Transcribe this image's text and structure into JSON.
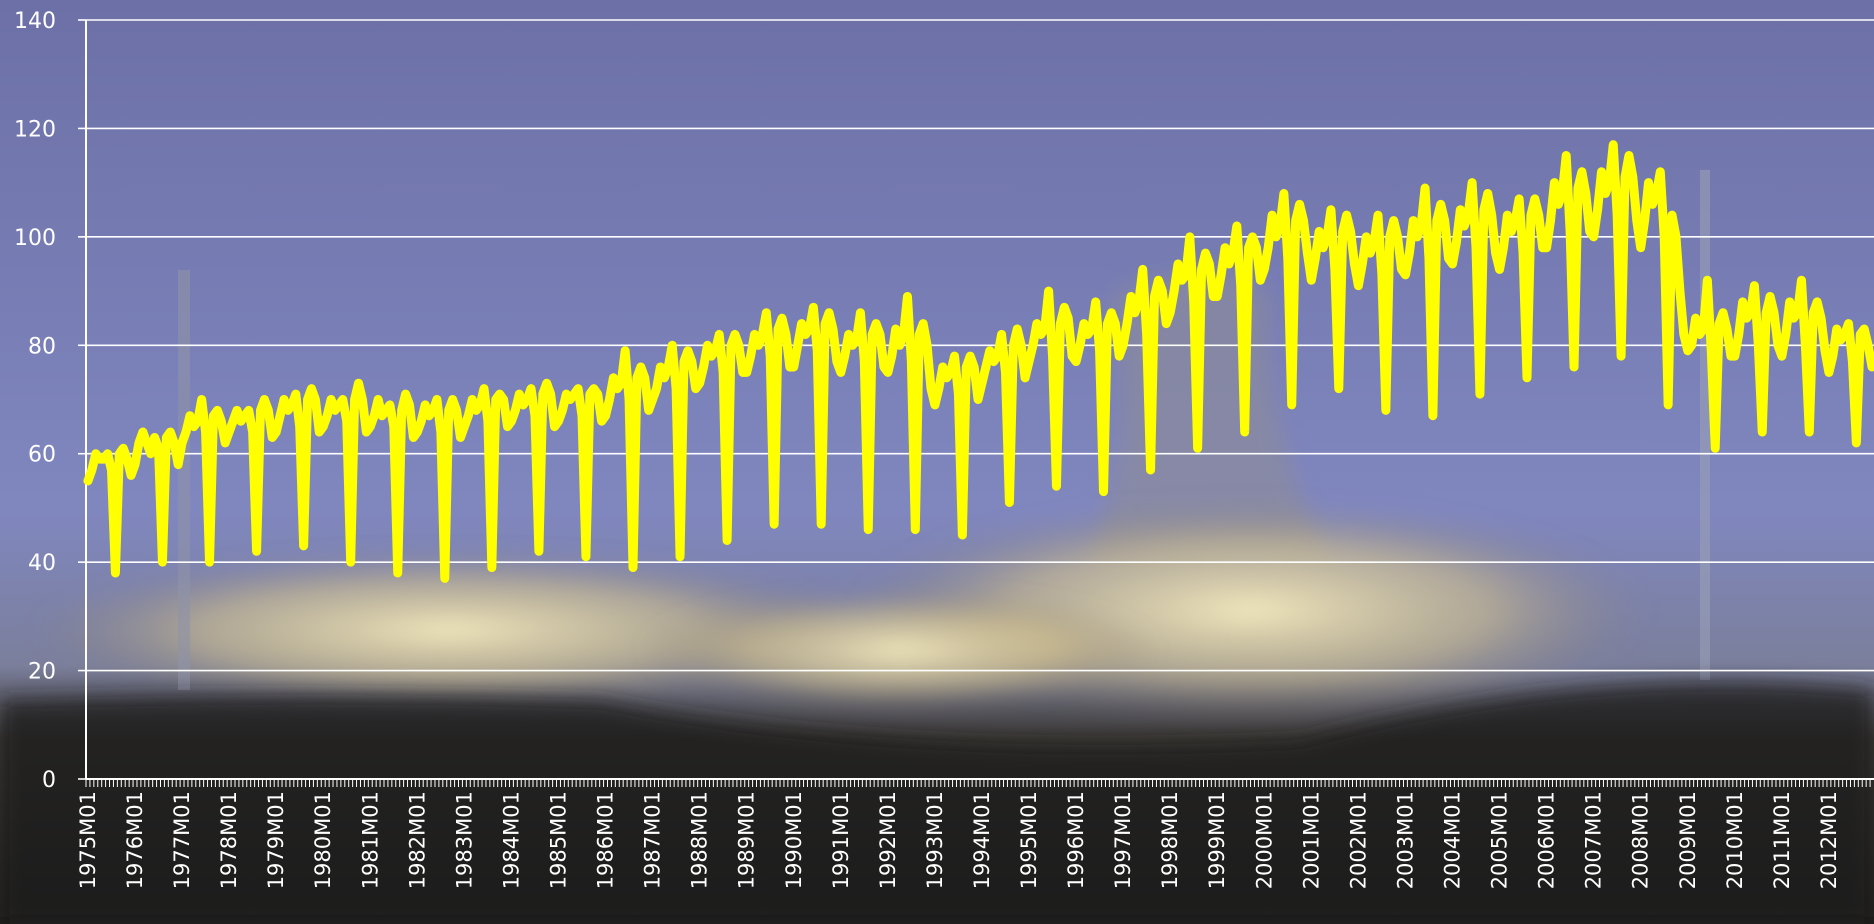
{
  "chart_data": {
    "type": "line",
    "color": "#ffff00",
    "grid": true,
    "ylim": [
      0,
      140
    ],
    "yticks": [
      0,
      20,
      40,
      60,
      80,
      100,
      120,
      140
    ],
    "categories": [
      "1975M01",
      null,
      null,
      null,
      null,
      null,
      null,
      null,
      null,
      null,
      null,
      null,
      "1976M01",
      null,
      null,
      null,
      null,
      null,
      null,
      null,
      null,
      null,
      null,
      null,
      "1977M01",
      null,
      null,
      null,
      null,
      null,
      null,
      null,
      null,
      null,
      null,
      null,
      "1978M01",
      null,
      null,
      null,
      null,
      null,
      null,
      null,
      null,
      null,
      null,
      null,
      "1979M01",
      null,
      null,
      null,
      null,
      null,
      null,
      null,
      null,
      null,
      null,
      null,
      "1980M01",
      null,
      null,
      null,
      null,
      null,
      null,
      null,
      null,
      null,
      null,
      null,
      "1981M01",
      null,
      null,
      null,
      null,
      null,
      null,
      null,
      null,
      null,
      null,
      null,
      "1982M01",
      null,
      null,
      null,
      null,
      null,
      null,
      null,
      null,
      null,
      null,
      null,
      "1983M01",
      null,
      null,
      null,
      null,
      null,
      null,
      null,
      null,
      null,
      null,
      null,
      "1984M01",
      null,
      null,
      null,
      null,
      null,
      null,
      null,
      null,
      null,
      null,
      null,
      "1985M01",
      null,
      null,
      null,
      null,
      null,
      null,
      null,
      null,
      null,
      null,
      null,
      "1986M01",
      null,
      null,
      null,
      null,
      null,
      null,
      null,
      null,
      null,
      null,
      null,
      "1987M01",
      null,
      null,
      null,
      null,
      null,
      null,
      null,
      null,
      null,
      null,
      null,
      "1988M01",
      null,
      null,
      null,
      null,
      null,
      null,
      null,
      null,
      null,
      null,
      null,
      "1989M01",
      null,
      null,
      null,
      null,
      null,
      null,
      null,
      null,
      null,
      null,
      null,
      "1990M01",
      null,
      null,
      null,
      null,
      null,
      null,
      null,
      null,
      null,
      null,
      null,
      "1991M01",
      null,
      null,
      null,
      null,
      null,
      null,
      null,
      null,
      null,
      null,
      null,
      "1992M01",
      null,
      null,
      null,
      null,
      null,
      null,
      null,
      null,
      null,
      null,
      null,
      "1993M01",
      null,
      null,
      null,
      null,
      null,
      null,
      null,
      null,
      null,
      null,
      null,
      "1994M01",
      null,
      null,
      null,
      null,
      null,
      null,
      null,
      null,
      null,
      null,
      null,
      "1995M01",
      null,
      null,
      null,
      null,
      null,
      null,
      null,
      null,
      null,
      null,
      null,
      "1996M01",
      null,
      null,
      null,
      null,
      null,
      null,
      null,
      null,
      null,
      null,
      null,
      "1997M01",
      null,
      null,
      null,
      null,
      null,
      null,
      null,
      null,
      null,
      null,
      null,
      "1998M01",
      null,
      null,
      null,
      null,
      null,
      null,
      null,
      null,
      null,
      null,
      null,
      "1999M01",
      null,
      null,
      null,
      null,
      null,
      null,
      null,
      null,
      null,
      null,
      null,
      "2000M01",
      null,
      null,
      null,
      null,
      null,
      null,
      null,
      null,
      null,
      null,
      null,
      "2001M01",
      null,
      null,
      null,
      null,
      null,
      null,
      null,
      null,
      null,
      null,
      null,
      "2002M01",
      null,
      null,
      null,
      null,
      null,
      null,
      null,
      null,
      null,
      null,
      null,
      "2003M01",
      null,
      null,
      null,
      null,
      null,
      null,
      null,
      null,
      null,
      null,
      null,
      "2004M01",
      null,
      null,
      null,
      null,
      null,
      null,
      null,
      null,
      null,
      null,
      null,
      "2005M01",
      null,
      null,
      null,
      null,
      null,
      null,
      null,
      null,
      null,
      null,
      null,
      "2006M01",
      null,
      null,
      null,
      null,
      null,
      null,
      null,
      null,
      null,
      null,
      null,
      "2007M01",
      null,
      null,
      null,
      null,
      null,
      null,
      null,
      null,
      null,
      null,
      null,
      "2008M01",
      null,
      null,
      null,
      null,
      null,
      null,
      null,
      null,
      null,
      null,
      null,
      "2009M01",
      null,
      null,
      null,
      null,
      null,
      null,
      null,
      null,
      null,
      null,
      null,
      "2010M01",
      null,
      null,
      null,
      null,
      null,
      null,
      null,
      null,
      null,
      null,
      null,
      "2011M01",
      null,
      null,
      null,
      null,
      null,
      null,
      null,
      null,
      null,
      null,
      null,
      "2012M01",
      null,
      null,
      null,
      null,
      null,
      null,
      null,
      null,
      null,
      null,
      null
    ],
    "values": [
      55,
      57,
      60,
      59,
      59,
      60,
      57,
      38,
      60,
      61,
      59,
      56,
      58,
      62,
      64,
      62,
      60,
      63,
      61,
      40,
      63,
      64,
      62,
      58,
      62,
      64,
      67,
      65,
      66,
      70,
      64,
      40,
      67,
      68,
      66,
      62,
      64,
      66,
      68,
      66,
      67,
      68,
      64,
      42,
      68,
      70,
      68,
      63,
      64,
      67,
      70,
      68,
      69,
      71,
      65,
      43,
      70,
      72,
      70,
      64,
      65,
      67,
      70,
      68,
      69,
      70,
      66,
      40,
      70,
      73,
      70,
      64,
      65,
      67,
      70,
      67,
      68,
      69,
      65,
      38,
      68,
      71,
      69,
      63,
      64,
      66,
      69,
      67,
      68,
      70,
      64,
      37,
      68,
      70,
      68,
      63,
      65,
      67,
      70,
      68,
      69,
      72,
      66,
      39,
      70,
      71,
      70,
      65,
      66,
      68,
      71,
      69,
      70,
      72,
      67,
      42,
      71,
      73,
      71,
      65,
      66,
      68,
      71,
      70,
      71,
      72,
      67,
      41,
      71,
      72,
      71,
      66,
      67,
      70,
      74,
      72,
      73,
      79,
      70,
      39,
      74,
      76,
      74,
      68,
      70,
      72,
      76,
      74,
      76,
      80,
      72,
      41,
      77,
      79,
      77,
      72,
      73,
      76,
      80,
      78,
      79,
      82,
      75,
      44,
      80,
      82,
      80,
      75,
      75,
      78,
      82,
      80,
      82,
      86,
      78,
      47,
      83,
      85,
      82,
      76,
      76,
      80,
      84,
      82,
      83,
      87,
      79,
      47,
      84,
      86,
      83,
      77,
      75,
      78,
      82,
      80,
      81,
      86,
      77,
      46,
      82,
      84,
      82,
      76,
      75,
      78,
      83,
      80,
      82,
      89,
      77,
      46,
      82,
      84,
      80,
      72,
      69,
      72,
      76,
      74,
      75,
      78,
      71,
      45,
      76,
      78,
      76,
      70,
      73,
      76,
      79,
      77,
      78,
      82,
      75,
      51,
      80,
      83,
      80,
      74,
      77,
      80,
      84,
      82,
      83,
      90,
      78,
      54,
      84,
      87,
      85,
      78,
      77,
      80,
      84,
      82,
      83,
      88,
      79,
      53,
      84,
      86,
      84,
      78,
      80,
      84,
      89,
      86,
      88,
      94,
      82,
      57,
      89,
      92,
      90,
      84,
      86,
      90,
      95,
      92,
      93,
      100,
      88,
      61,
      94,
      97,
      95,
      89,
      89,
      93,
      98,
      95,
      97,
      102,
      91,
      64,
      98,
      100,
      98,
      92,
      94,
      98,
      104,
      100,
      102,
      108,
      96,
      69,
      103,
      106,
      103,
      97,
      92,
      96,
      101,
      98,
      100,
      105,
      94,
      72,
      101,
      104,
      101,
      95,
      91,
      95,
      100,
      97,
      99,
      104,
      93,
      68,
      100,
      103,
      100,
      94,
      93,
      97,
      103,
      100,
      102,
      109,
      96,
      67,
      103,
      106,
      103,
      96,
      95,
      99,
      105,
      102,
      104,
      110,
      98,
      71,
      105,
      108,
      104,
      97,
      94,
      98,
      104,
      101,
      103,
      107,
      97,
      74,
      104,
      107,
      104,
      98,
      98,
      103,
      110,
      106,
      108,
      115,
      101,
      76,
      109,
      112,
      108,
      101,
      100,
      105,
      112,
      108,
      110,
      117,
      104,
      78,
      111,
      115,
      111,
      103,
      98,
      103,
      110,
      106,
      108,
      112,
      100,
      69,
      104,
      100,
      90,
      82,
      79,
      80,
      85,
      82,
      83,
      92,
      79,
      61,
      84,
      86,
      83,
      78,
      78,
      82,
      88,
      85,
      86,
      91,
      80,
      64,
      86,
      89,
      86,
      80,
      78,
      82,
      88,
      85,
      86,
      92,
      80,
      64,
      86,
      88,
      85,
      79,
      75,
      78,
      83,
      81,
      82,
      84,
      77,
      62,
      82,
      83,
      80,
      76
    ]
  }
}
